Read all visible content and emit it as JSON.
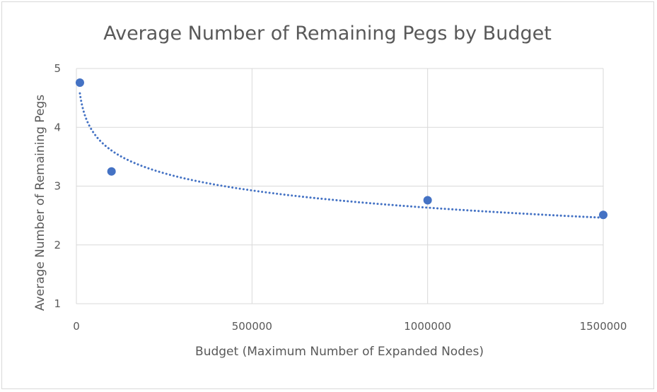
{
  "chart_data": {
    "type": "scatter",
    "title": "Average Number of Remaining Pegs by Budget",
    "xlabel": "Budget (Maximum Number of Expanded Nodes)",
    "ylabel": "Average Number of Remaining Pegs",
    "xlim": [
      0,
      1500000
    ],
    "ylim": [
      1,
      5
    ],
    "x_ticks": [
      "0",
      "500000",
      "1000000",
      "1500000"
    ],
    "y_ticks": [
      "1",
      "2",
      "3",
      "4",
      "5"
    ],
    "points": [
      {
        "x": 10000,
        "y": 4.76
      },
      {
        "x": 100000,
        "y": 3.25
      },
      {
        "x": 1000000,
        "y": 2.76
      },
      {
        "x": 1500000,
        "y": 2.51
      }
    ],
    "trendline": {
      "type": "logarithmic",
      "style": "dotted"
    },
    "grid": true,
    "colors": {
      "marker": "#4472c4",
      "trendline": "#4472c4",
      "grid": "#d9d9d9",
      "text": "#595959"
    }
  }
}
